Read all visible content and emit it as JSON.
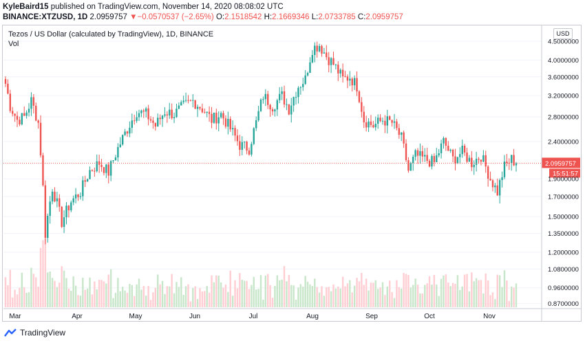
{
  "header": {
    "author": "KyleBaird15",
    "published": "published on TradingView.com, November 14, 2020 08:08:02 UTC",
    "symbol": "BINANCE:XTZUSD, 1D",
    "last": "2.0959757",
    "change_arrow": "▼",
    "change": "−0.0570537 (−2.65%)",
    "o_label": "O:",
    "o_value": "2.1518542",
    "h_label": "H:",
    "h_value": "2.1669346",
    "l_label": "L:",
    "l_value": "2.0733785",
    "c_label": "C:",
    "c_value": "2.0959757"
  },
  "chart_title": "Tezos / US Dollar (calculated by TradingView), 1D, BINANCE",
  "vol_label": "Vol",
  "currency": "USD",
  "price_label": "2.0959757",
  "countdown_label": "15:51:57",
  "footer": {
    "brand": "TradingView"
  },
  "colors": {
    "up": "#26a69a",
    "down": "#ef5350",
    "vol_up": "#c8e6c9",
    "vol_down": "#ffcdd2",
    "grid": "#f0f3fa",
    "brand": "#2962ff"
  },
  "chart_data": {
    "type": "candlestick",
    "y_scale": "log",
    "ylim": [
      0.85,
      4.8
    ],
    "y_ticks": [
      "4.5000000",
      "4.0000000",
      "3.6000000",
      "3.2000000",
      "2.8000000",
      "2.4000000",
      "1.9000000",
      "1.7000000",
      "1.5000000",
      "1.3500000",
      "1.2000000",
      "1.0800000",
      "0.9600000",
      "0.8700000"
    ],
    "x_ticks": [
      "Mar",
      "Apr",
      "May",
      "Jun",
      "Jul",
      "Aug",
      "Sep",
      "Oct",
      "Nov"
    ],
    "current_price": 2.0959757,
    "close_path": [
      {
        "day": 0,
        "close": 3.45
      },
      {
        "day": 2,
        "close": 3.0
      },
      {
        "day": 5,
        "close": 2.75
      },
      {
        "day": 8,
        "close": 2.8
      },
      {
        "day": 11,
        "close": 3.1
      },
      {
        "day": 14,
        "close": 2.7
      },
      {
        "day": 17,
        "close": 1.35
      },
      {
        "day": 20,
        "close": 1.8
      },
      {
        "day": 24,
        "close": 1.45
      },
      {
        "day": 28,
        "close": 1.65
      },
      {
        "day": 32,
        "close": 1.75
      },
      {
        "day": 36,
        "close": 2.0
      },
      {
        "day": 40,
        "close": 2.1
      },
      {
        "day": 44,
        "close": 1.98
      },
      {
        "day": 48,
        "close": 2.3
      },
      {
        "day": 52,
        "close": 2.6
      },
      {
        "day": 56,
        "close": 2.9
      },
      {
        "day": 60,
        "close": 2.85
      },
      {
        "day": 64,
        "close": 2.65
      },
      {
        "day": 68,
        "close": 2.9
      },
      {
        "day": 72,
        "close": 2.85
      },
      {
        "day": 76,
        "close": 3.0
      },
      {
        "day": 80,
        "close": 3.1
      },
      {
        "day": 84,
        "close": 2.95
      },
      {
        "day": 88,
        "close": 2.75
      },
      {
        "day": 92,
        "close": 2.85
      },
      {
        "day": 96,
        "close": 2.6
      },
      {
        "day": 100,
        "close": 2.35
      },
      {
        "day": 104,
        "close": 2.3
      },
      {
        "day": 107,
        "close": 2.7
      },
      {
        "day": 110,
        "close": 3.2
      },
      {
        "day": 114,
        "close": 3.0
      },
      {
        "day": 118,
        "close": 3.2
      },
      {
        "day": 121,
        "close": 2.95
      },
      {
        "day": 125,
        "close": 3.4
      },
      {
        "day": 128,
        "close": 3.55
      },
      {
        "day": 131,
        "close": 4.3
      },
      {
        "day": 134,
        "close": 4.4
      },
      {
        "day": 137,
        "close": 4.1
      },
      {
        "day": 140,
        "close": 3.9
      },
      {
        "day": 144,
        "close": 3.55
      },
      {
        "day": 147,
        "close": 3.6
      },
      {
        "day": 150,
        "close": 3.4
      },
      {
        "day": 153,
        "close": 2.75
      },
      {
        "day": 157,
        "close": 2.65
      },
      {
        "day": 161,
        "close": 2.75
      },
      {
        "day": 165,
        "close": 2.7
      },
      {
        "day": 169,
        "close": 2.45
      },
      {
        "day": 172,
        "close": 2.0
      },
      {
        "day": 175,
        "close": 2.2
      },
      {
        "day": 179,
        "close": 2.15
      },
      {
        "day": 183,
        "close": 2.1
      },
      {
        "day": 187,
        "close": 2.4
      },
      {
        "day": 191,
        "close": 2.15
      },
      {
        "day": 195,
        "close": 2.25
      },
      {
        "day": 199,
        "close": 2.1
      },
      {
        "day": 203,
        "close": 2.2
      },
      {
        "day": 207,
        "close": 1.9
      },
      {
        "day": 210,
        "close": 1.75
      },
      {
        "day": 213,
        "close": 2.05
      },
      {
        "day": 216,
        "close": 2.15
      },
      {
        "day": 218,
        "close": 2.0959757
      }
    ]
  }
}
